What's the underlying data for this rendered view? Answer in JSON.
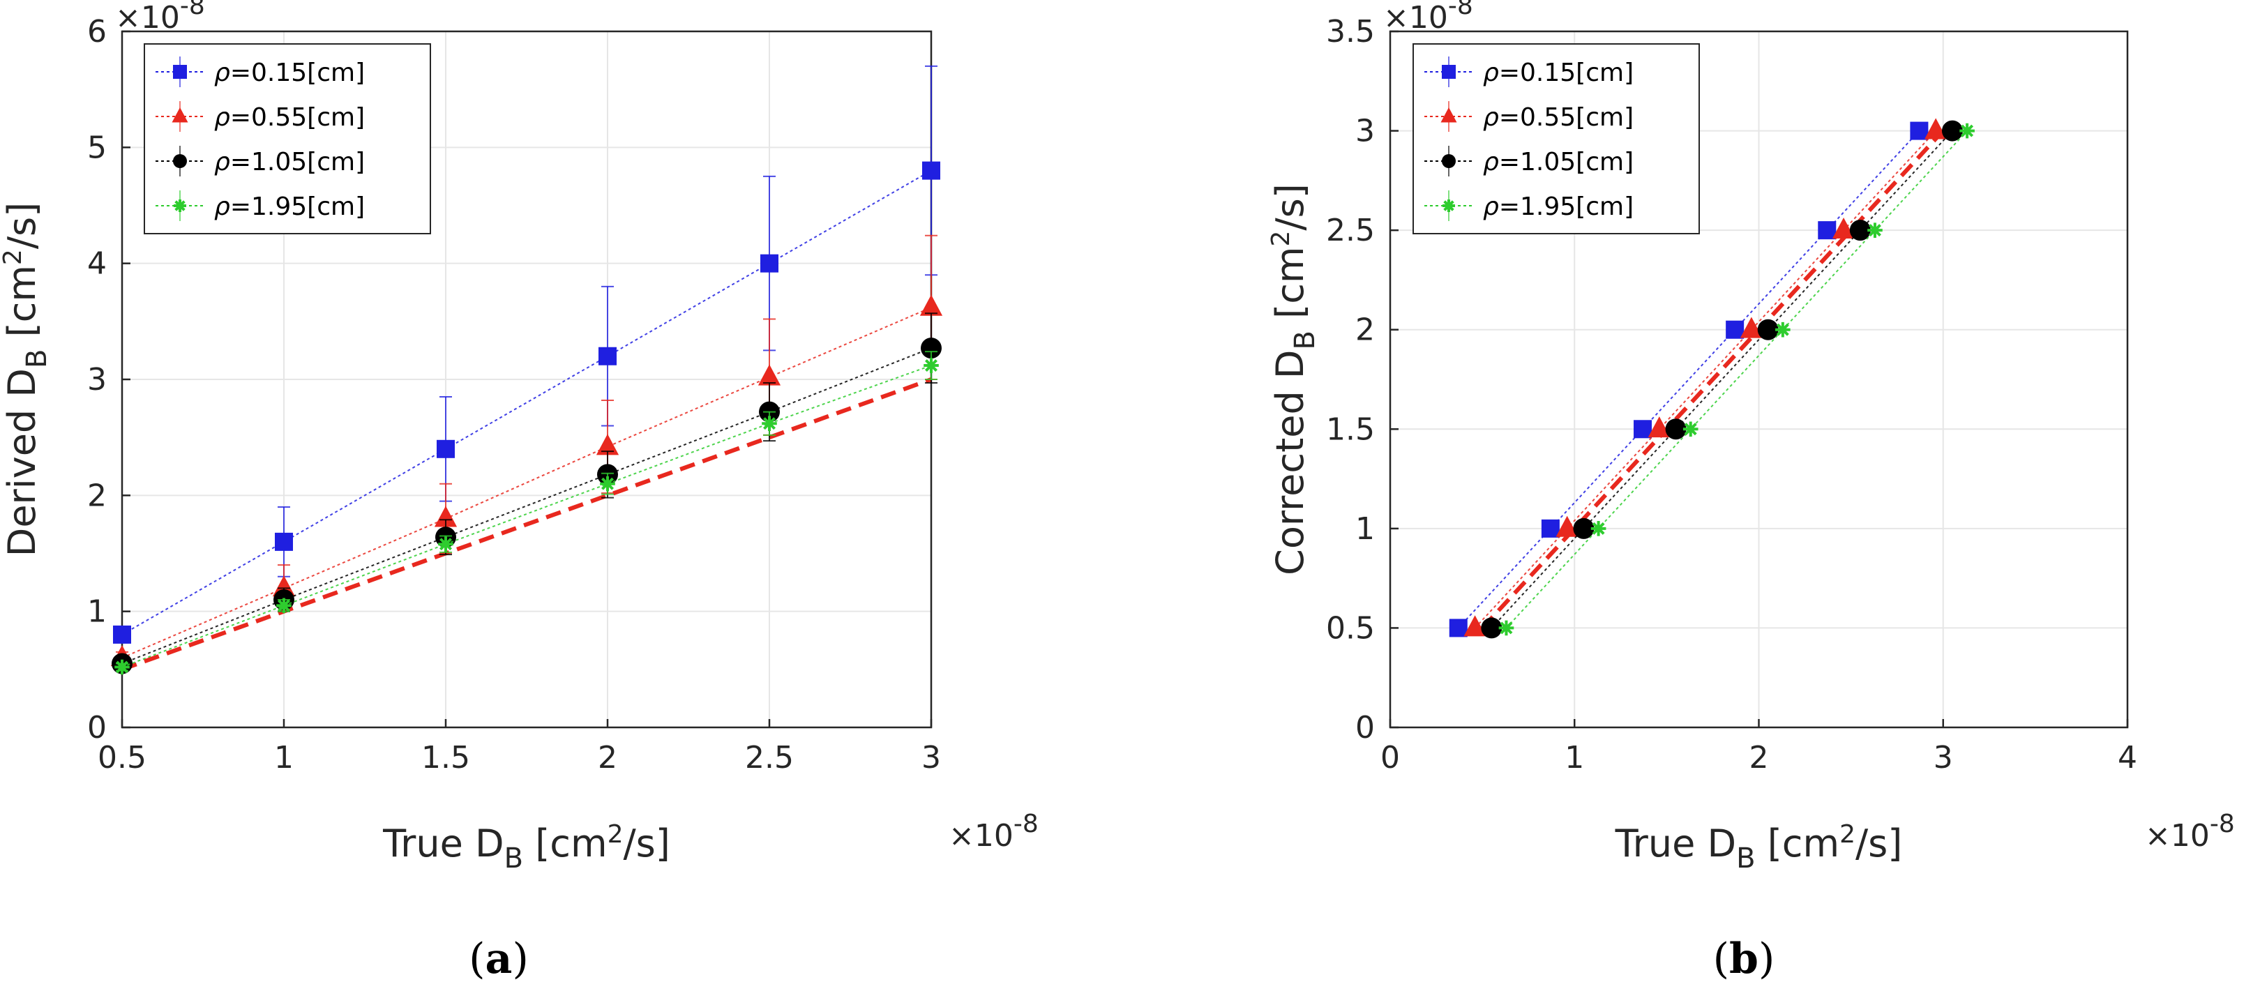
{
  "chart_data": [
    {
      "id": "a",
      "type": "line",
      "caption_letter": "a",
      "caption_open": "(",
      "caption_close": ")",
      "xlabel": "True D",
      "xlabel_sub": "B",
      "xlabel_unit_pre": " [cm",
      "xlabel_unit_sup": "2",
      "xlabel_unit_post": "/s]",
      "ylabel": "Derived D",
      "ylabel_sub": "B",
      "ylabel_unit_pre": " [cm",
      "ylabel_unit_sup": "2",
      "ylabel_unit_post": "/s]",
      "x_multiplier": "×10",
      "x_multiplier_exp": "-8",
      "y_multiplier": "×10",
      "y_multiplier_exp": "-8",
      "xlim": [
        0.5,
        3
      ],
      "ylim": [
        0,
        6
      ],
      "xticks": [
        0.5,
        1,
        1.5,
        2,
        2.5,
        3
      ],
      "xtick_labels": [
        "0.5",
        "1",
        "1.5",
        "2",
        "2.5",
        "3"
      ],
      "yticks": [
        0,
        1,
        2,
        3,
        4,
        5,
        6
      ],
      "ytick_labels": [
        "0",
        "1",
        "2",
        "3",
        "4",
        "5",
        "6"
      ],
      "grid": true,
      "legend_position": "top-left",
      "reference_line": {
        "x": [
          0.5,
          3
        ],
        "y": [
          0.5,
          3
        ],
        "color": "#e8281e",
        "style": "dashed"
      },
      "series": [
        {
          "name": "ρ=0.15[cm]",
          "symbol": "ρ",
          "label": "=0.15[cm]",
          "color": "#1f1fe0",
          "marker": "square",
          "x": [
            0.5,
            1,
            1.5,
            2,
            2.5,
            3
          ],
          "y": [
            0.8,
            1.6,
            2.4,
            3.2,
            4.0,
            4.8
          ],
          "err": [
            0.05,
            0.3,
            0.45,
            0.6,
            0.75,
            0.9
          ]
        },
        {
          "name": "ρ=0.55[cm]",
          "symbol": "ρ",
          "label": "=0.55[cm]",
          "color": "#e8281e",
          "marker": "triangle",
          "x": [
            0.5,
            1,
            1.5,
            2,
            2.5,
            3
          ],
          "y": [
            0.6,
            1.2,
            1.8,
            2.42,
            3.02,
            3.62
          ],
          "err": [
            0.05,
            0.2,
            0.3,
            0.4,
            0.5,
            0.62
          ]
        },
        {
          "name": "ρ=1.05[cm]",
          "symbol": "ρ",
          "label": "=1.05[cm]",
          "color": "#000000",
          "marker": "circle",
          "x": [
            0.5,
            1,
            1.5,
            2,
            2.5,
            3
          ],
          "y": [
            0.55,
            1.1,
            1.64,
            2.18,
            2.72,
            3.27
          ],
          "err": [
            0.05,
            0.1,
            0.15,
            0.2,
            0.25,
            0.3
          ]
        },
        {
          "name": "ρ=1.95[cm]",
          "symbol": "ρ",
          "label": "=1.95[cm]",
          "color": "#2ecc2e",
          "marker": "star",
          "x": [
            0.5,
            1,
            1.5,
            2,
            2.5,
            3
          ],
          "y": [
            0.52,
            1.05,
            1.58,
            2.1,
            2.62,
            3.12
          ],
          "err": [
            0.03,
            0.05,
            0.07,
            0.09,
            0.1,
            0.12
          ]
        }
      ]
    },
    {
      "id": "b",
      "type": "line",
      "caption_letter": "b",
      "caption_open": "(",
      "caption_close": ")",
      "xlabel": "True D",
      "xlabel_sub": "B",
      "xlabel_unit_pre": " [cm",
      "xlabel_unit_sup": "2",
      "xlabel_unit_post": "/s]",
      "ylabel": "Corrected D",
      "ylabel_sub": "B",
      "ylabel_unit_pre": " [cm",
      "ylabel_unit_sup": "2",
      "ylabel_unit_post": "/s]",
      "x_multiplier": "×10",
      "x_multiplier_exp": "-8",
      "y_multiplier": "×10",
      "y_multiplier_exp": "-8",
      "xlim": [
        0,
        4
      ],
      "ylim": [
        0,
        3.5
      ],
      "xticks": [
        0,
        1,
        2,
        3,
        4
      ],
      "xtick_labels": [
        "0",
        "1",
        "2",
        "3",
        "4"
      ],
      "yticks": [
        0,
        0.5,
        1,
        1.5,
        2,
        2.5,
        3,
        3.5
      ],
      "ytick_labels": [
        "0",
        "0.5",
        "1",
        "1.5",
        "2",
        "2.5",
        "3",
        "3.5"
      ],
      "grid": true,
      "legend_position": "top-left",
      "reference_line": {
        "x": [
          0.5,
          3
        ],
        "y": [
          0.5,
          3
        ],
        "color": "#e8281e",
        "style": "dashed"
      },
      "series": [
        {
          "name": "ρ=0.15[cm]",
          "symbol": "ρ",
          "label": "=0.15[cm]",
          "color": "#1f1fe0",
          "marker": "square",
          "x": [
            0.37,
            0.87,
            1.37,
            1.87,
            2.37,
            2.87
          ],
          "y": [
            0.5,
            1,
            1.5,
            2,
            2.5,
            3
          ],
          "err": []
        },
        {
          "name": "ρ=0.55[cm]",
          "symbol": "ρ",
          "label": "=0.55[cm]",
          "color": "#e8281e",
          "marker": "triangle",
          "x": [
            0.46,
            0.96,
            1.46,
            1.96,
            2.46,
            2.96
          ],
          "y": [
            0.5,
            1,
            1.5,
            2,
            2.5,
            3
          ],
          "err": []
        },
        {
          "name": "ρ=1.05[cm]",
          "symbol": "ρ",
          "label": "=1.05[cm]",
          "color": "#000000",
          "marker": "circle",
          "x": [
            0.55,
            1.05,
            1.55,
            2.05,
            2.55,
            3.05
          ],
          "y": [
            0.5,
            1,
            1.5,
            2,
            2.5,
            3
          ],
          "err": []
        },
        {
          "name": "ρ=1.95[cm]",
          "symbol": "ρ",
          "label": "=1.95[cm]",
          "color": "#2ecc2e",
          "marker": "star",
          "x": [
            0.63,
            1.13,
            1.63,
            2.13,
            2.63,
            3.13
          ],
          "y": [
            0.5,
            1,
            1.5,
            2,
            2.5,
            3
          ],
          "err": []
        }
      ]
    }
  ]
}
